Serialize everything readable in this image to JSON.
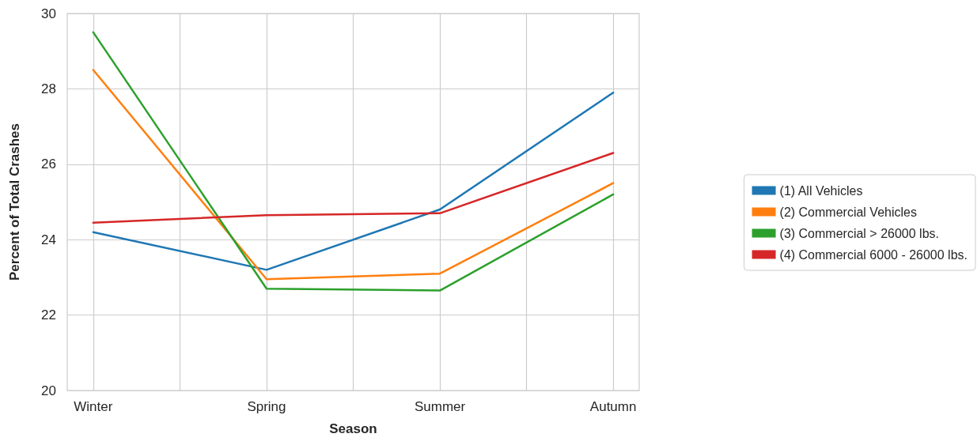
{
  "chart_data": {
    "type": "line",
    "xlabel": "Season",
    "ylabel": "Percent of Total Crashes",
    "categories": [
      "Winter",
      "Spring",
      "Summer",
      "Autumn"
    ],
    "ylim": [
      20,
      30
    ],
    "yticks": [
      20,
      22,
      24,
      26,
      28,
      30
    ],
    "series": [
      {
        "name": "(1) All Vehicles",
        "color": "#1f77b4",
        "values": [
          24.2,
          23.2,
          24.8,
          27.9
        ]
      },
      {
        "name": "(2) Commercial Vehicles",
        "color": "#ff7f0e",
        "values": [
          28.5,
          22.95,
          23.1,
          25.5
        ]
      },
      {
        "name": "(3) Commercial > 26000 lbs.",
        "color": "#2ca02c",
        "values": [
          29.5,
          22.7,
          22.65,
          25.2
        ]
      },
      {
        "name": "(4) Commercial 6000 - 26000 lbs.",
        "color": "#d62728",
        "values": [
          24.45,
          24.65,
          24.7,
          26.3
        ]
      }
    ],
    "grid": true,
    "legend": "right",
    "marker": "none",
    "line_style": "solid"
  }
}
